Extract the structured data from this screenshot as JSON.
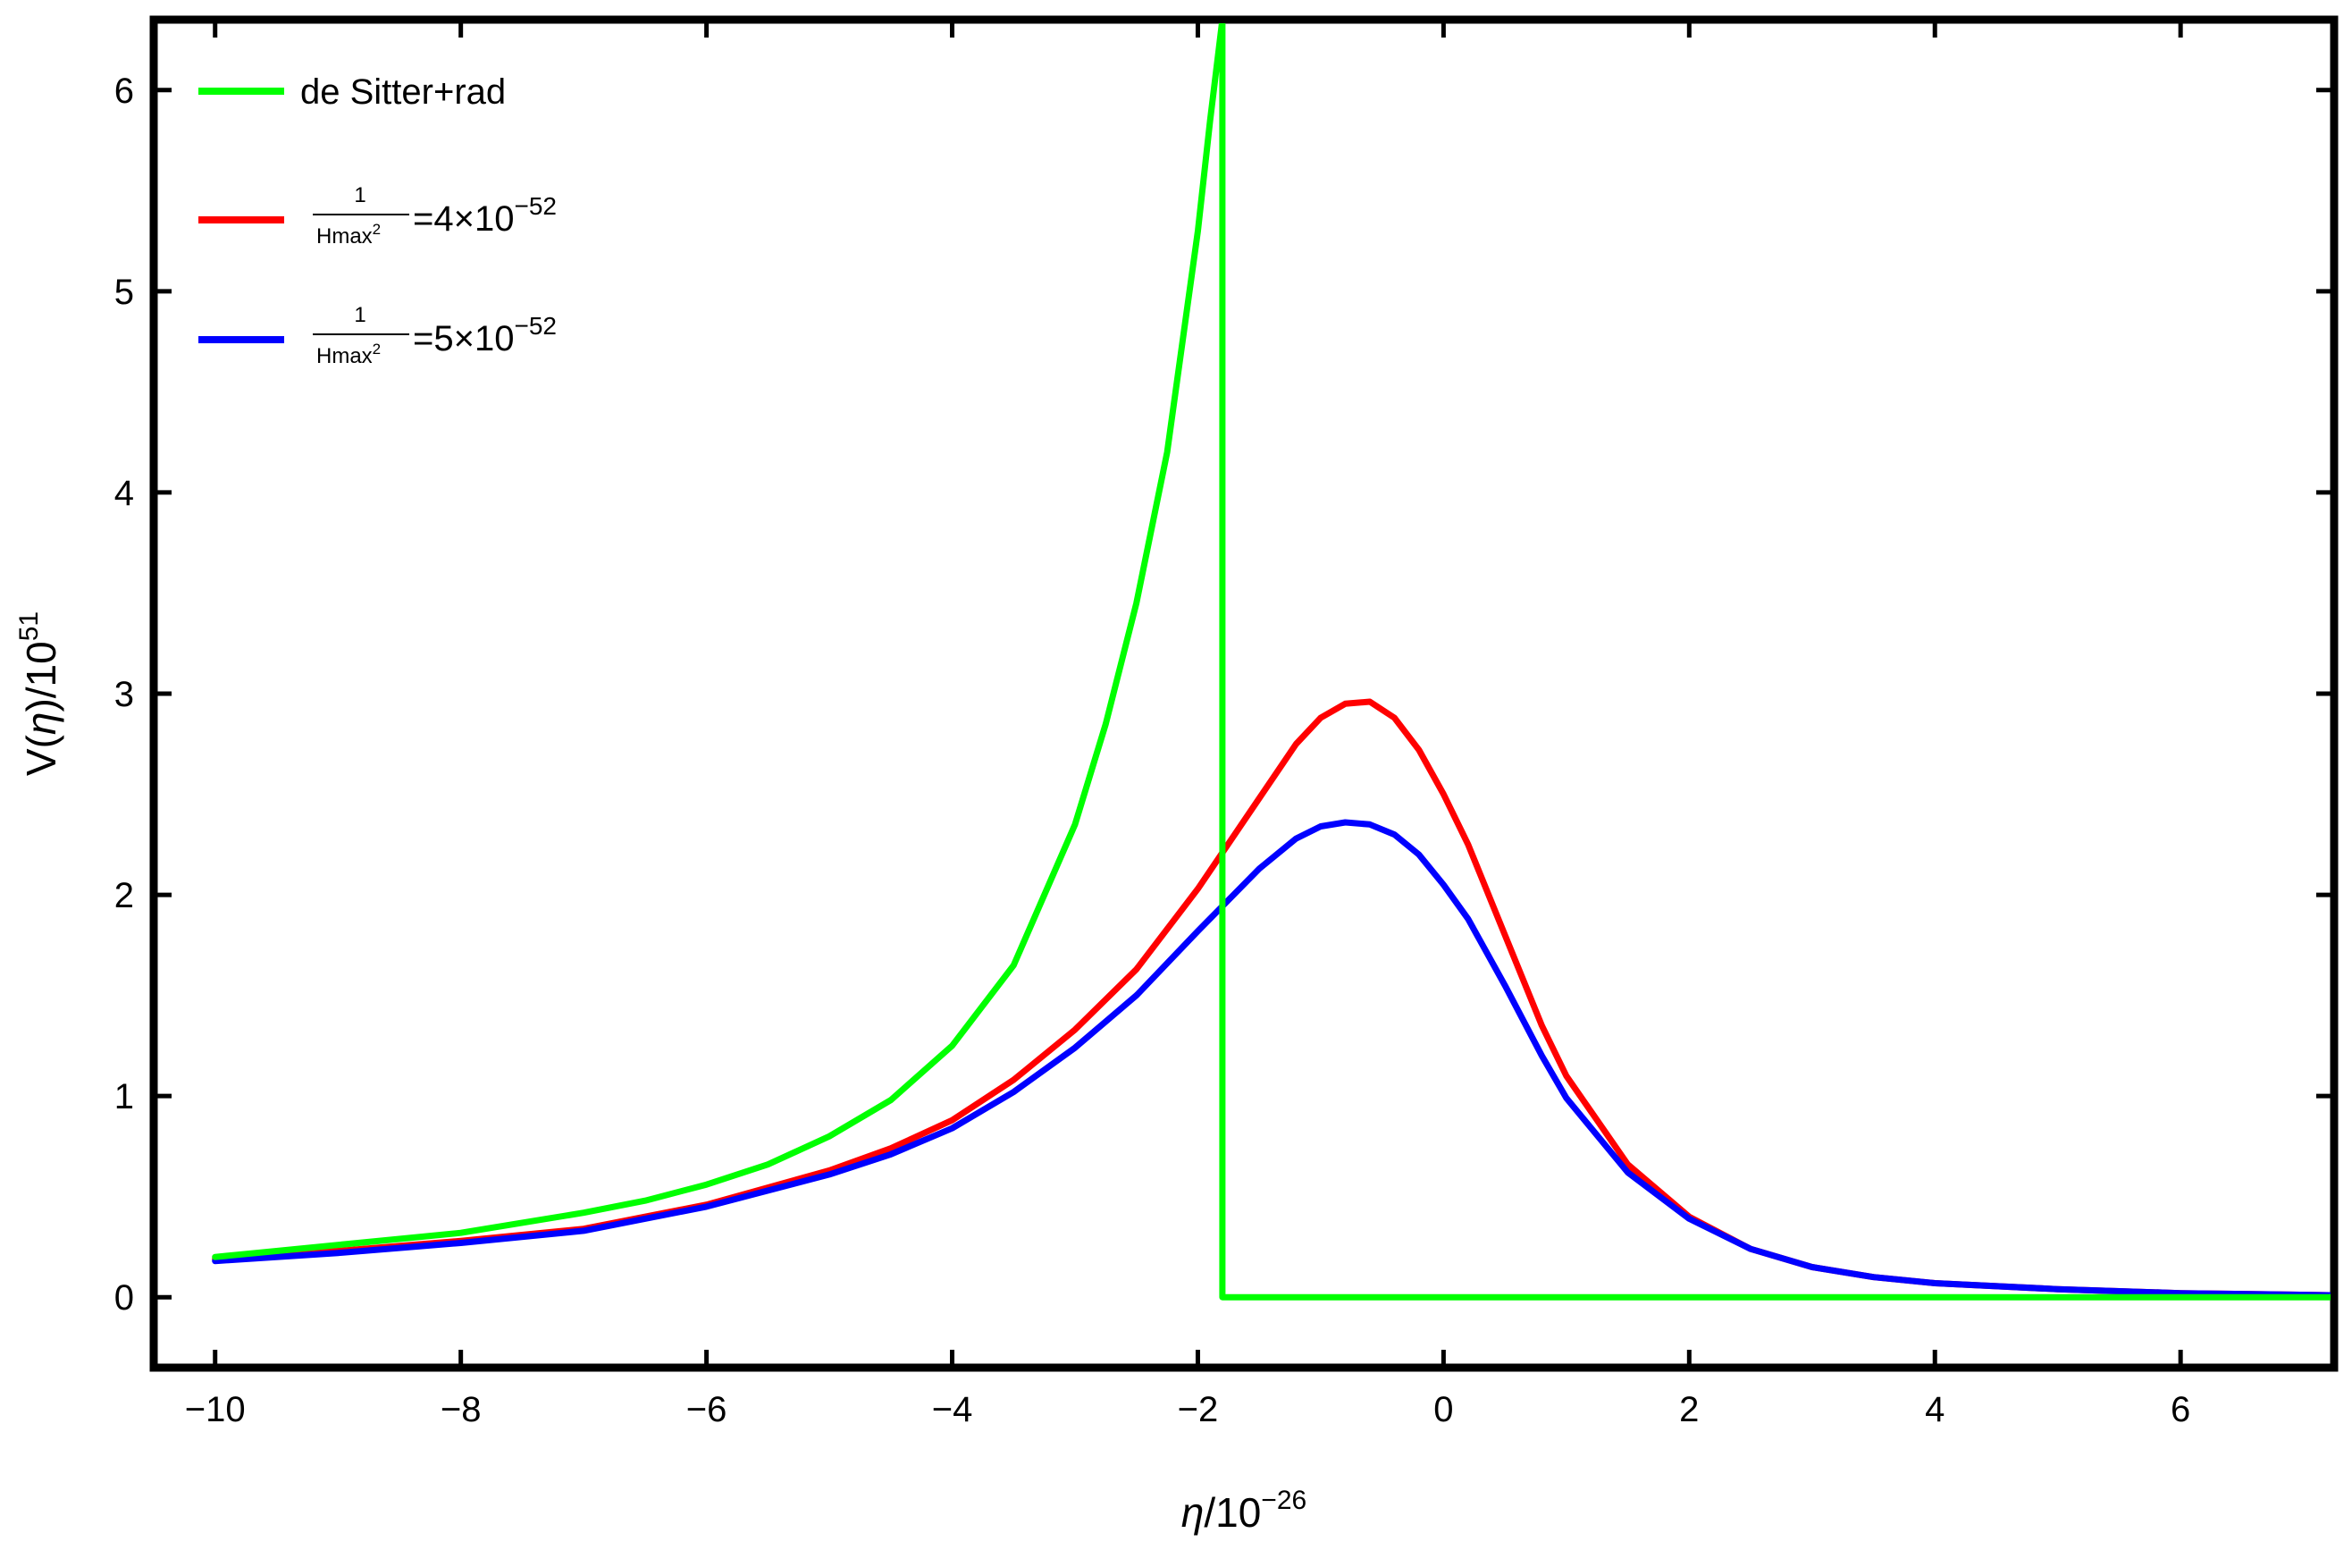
{
  "chart_data": {
    "type": "line",
    "title": "",
    "xlabel": {
      "var": "η",
      "base": "/10",
      "exp": "−26"
    },
    "ylabel": {
      "var": "η",
      "prefix": "V(",
      "mid": ")/10",
      "exp": "51"
    },
    "xlim": [
      -10.5,
      7.25
    ],
    "ylim": [
      -0.35,
      6.35
    ],
    "xticks": [
      -10,
      -8,
      -6,
      -4,
      -2,
      0,
      2,
      4,
      6
    ],
    "xtick_labels": [
      "−10",
      "−8",
      "−6",
      "−4",
      "−2",
      "0",
      "2",
      "4",
      "6"
    ],
    "yticks": [
      0,
      1,
      2,
      3,
      4,
      5,
      6
    ],
    "ytick_labels": [
      "0",
      "1",
      "2",
      "3",
      "4",
      "5",
      "6"
    ],
    "grid": false,
    "legend_position": "top-left",
    "series": [
      {
        "name": "de Sitter+rad",
        "color": "#00ff00",
        "x": [
          -10,
          -9.5,
          -9,
          -8.5,
          -8,
          -7.5,
          -7,
          -6.5,
          -6,
          -5.5,
          -5,
          -4.5,
          -4,
          -3.5,
          -3,
          -2.75,
          -2.5,
          -2.25,
          -2.0,
          -1.9,
          -1.8,
          -1.8,
          7.25
        ],
        "y": [
          0.2,
          0.23,
          0.26,
          0.29,
          0.32,
          0.37,
          0.42,
          0.48,
          0.56,
          0.66,
          0.8,
          0.98,
          1.25,
          1.65,
          2.35,
          2.85,
          3.45,
          4.2,
          5.3,
          5.85,
          6.35,
          0.0,
          0.0
        ]
      },
      {
        "name": "4×10",
        "color": "#ff0000",
        "legend_frac_num": "1",
        "legend_frac_den": "Hmax",
        "legend_den_exp": "2",
        "legend_value": "=4×10",
        "legend_exp": "−52",
        "x": [
          -10,
          -9,
          -8,
          -7,
          -6,
          -5,
          -4.5,
          -4,
          -3.5,
          -3,
          -2.5,
          -2,
          -1.5,
          -1.2,
          -1.0,
          -0.8,
          -0.6,
          -0.4,
          -0.2,
          0,
          0.2,
          0.5,
          0.8,
          1.0,
          1.5,
          2.0,
          2.5,
          3.0,
          3.5,
          4.0,
          5.0,
          6.0,
          7.25
        ],
        "y": [
          0.19,
          0.23,
          0.28,
          0.34,
          0.46,
          0.63,
          0.74,
          0.88,
          1.08,
          1.33,
          1.63,
          2.03,
          2.48,
          2.75,
          2.88,
          2.95,
          2.96,
          2.88,
          2.72,
          2.5,
          2.25,
          1.8,
          1.35,
          1.1,
          0.66,
          0.4,
          0.24,
          0.15,
          0.1,
          0.07,
          0.04,
          0.02,
          0.01
        ]
      },
      {
        "name": "5×10",
        "color": "#0000ff",
        "legend_frac_num": "1",
        "legend_frac_den": "Hmax",
        "legend_den_exp": "2",
        "legend_value": "=5×10",
        "legend_exp": "−52",
        "x": [
          -10,
          -9,
          -8,
          -7,
          -6,
          -5,
          -4.5,
          -4,
          -3.5,
          -3,
          -2.5,
          -2,
          -1.5,
          -1.2,
          -1.0,
          -0.8,
          -0.6,
          -0.4,
          -0.2,
          0,
          0.2,
          0.5,
          0.8,
          1.0,
          1.5,
          2.0,
          2.5,
          3.0,
          3.5,
          4.0,
          5.0,
          6.0,
          7.25
        ],
        "y": [
          0.18,
          0.22,
          0.27,
          0.33,
          0.45,
          0.61,
          0.71,
          0.84,
          1.02,
          1.24,
          1.5,
          1.82,
          2.13,
          2.28,
          2.34,
          2.36,
          2.35,
          2.3,
          2.2,
          2.05,
          1.88,
          1.55,
          1.2,
          0.99,
          0.62,
          0.39,
          0.24,
          0.15,
          0.1,
          0.07,
          0.04,
          0.02,
          0.01
        ]
      }
    ]
  }
}
